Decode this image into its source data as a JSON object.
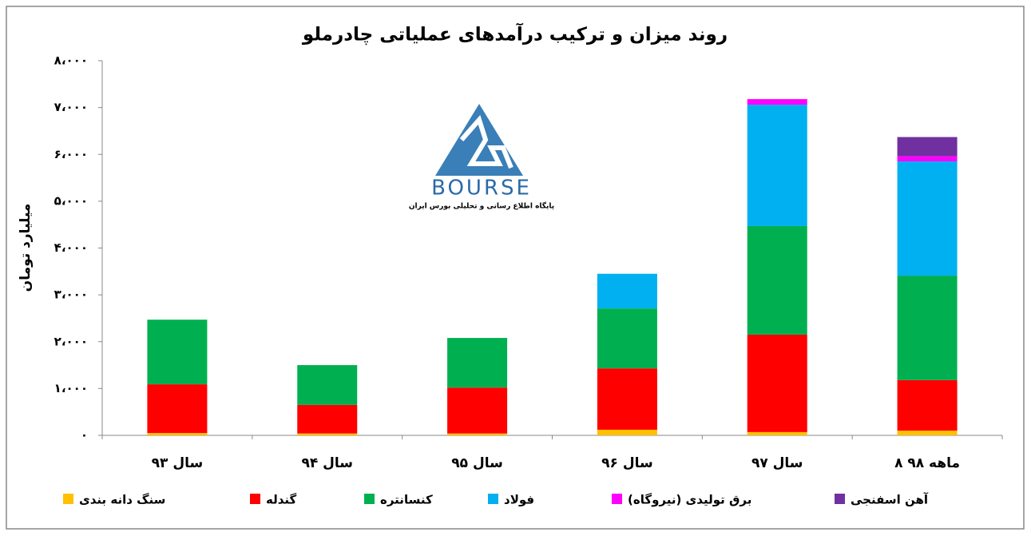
{
  "chart_data": {
    "type": "stacked_bar",
    "title": "روند میزان و ترکیب درآمدهای عملیاتی چادرملو",
    "y_label": "میلیارد تومان",
    "categories": [
      "سال ۹۳",
      "سال ۹۴",
      "سال ۹۵",
      "سال ۹۶",
      "سال ۹۷",
      "۸ ماهه ۹۸"
    ],
    "series": [
      {
        "name": "سنگ دانه بندی",
        "color": "#ffc000",
        "values": [
          50,
          40,
          40,
          120,
          70,
          100
        ]
      },
      {
        "name": "گندله",
        "color": "#ff0000",
        "values": [
          1040,
          610,
          980,
          1310,
          2080,
          1080
        ]
      },
      {
        "name": "کنسانتره",
        "color": "#00b050",
        "values": [
          1380,
          850,
          1060,
          1280,
          2320,
          2230
        ]
      },
      {
        "name": "فولاد",
        "color": "#00b0f0",
        "values": [
          null,
          null,
          null,
          740,
          2590,
          2440
        ]
      },
      {
        "name": "برق تولیدی (نیروگاه)",
        "color": "#ff00ff",
        "values": [
          null,
          null,
          null,
          null,
          120,
          110
        ]
      },
      {
        "name": "آهن اسفنجی",
        "color": "#7030a0",
        "values": [
          null,
          null,
          null,
          null,
          null,
          410
        ]
      }
    ],
    "ylim": [
      0,
      8000
    ],
    "yticks": [
      {
        "value": 0,
        "label": "۰"
      },
      {
        "value": 1000,
        "label": "۱،۰۰۰"
      },
      {
        "value": 2000,
        "label": "۲،۰۰۰"
      },
      {
        "value": 3000,
        "label": "۳،۰۰۰"
      },
      {
        "value": 4000,
        "label": "۴،۰۰۰"
      },
      {
        "value": 5000,
        "label": "۵،۰۰۰"
      },
      {
        "value": 6000,
        "label": "۶،۰۰۰"
      },
      {
        "value": 7000,
        "label": "۷،۰۰۰"
      },
      {
        "value": 8000,
        "label": "۸،۰۰۰"
      }
    ],
    "grid": false,
    "legend": "bottom",
    "logo": {
      "text": "BOURSE",
      "subtitle": "پایگاه اطلاع رسانی و تحلیلی بورس ایران"
    }
  }
}
